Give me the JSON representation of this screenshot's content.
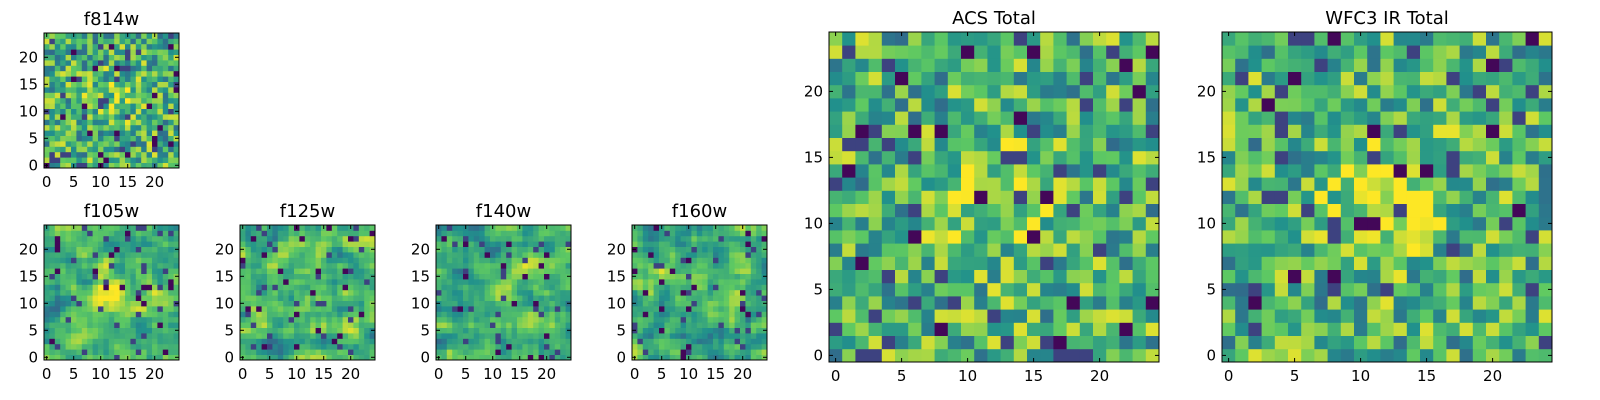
{
  "figure": {
    "colormap": [
      "#440154",
      "#3b528b",
      "#21918c",
      "#5ec962",
      "#fde725"
    ]
  },
  "chart_data": [
    {
      "type": "heatmap",
      "title": "f814w",
      "xlabel": "",
      "ylabel": "",
      "grid_shape": [
        25,
        25
      ],
      "xlim": [
        0,
        25
      ],
      "ylim": [
        0,
        25
      ],
      "xticks": [
        "0",
        "5",
        "10",
        "15",
        "20"
      ],
      "yticks": [
        "0",
        "5",
        "10",
        "15",
        "20"
      ],
      "seed": 814,
      "mode": "noise",
      "center_boost": 0.15,
      "grid": false,
      "legend": "none"
    },
    {
      "type": "heatmap",
      "title": "f105w",
      "xlabel": "",
      "ylabel": "",
      "grid_shape": [
        25,
        25
      ],
      "xlim": [
        0,
        25
      ],
      "ylim": [
        0,
        25
      ],
      "xticks": [
        "0",
        "5",
        "10",
        "15",
        "20"
      ],
      "yticks": [
        "0",
        "5",
        "10",
        "15",
        "20"
      ],
      "seed": 105,
      "mode": "smooth",
      "center_boost": 0.35,
      "grid": false,
      "legend": "none"
    },
    {
      "type": "heatmap",
      "title": "f125w",
      "xlabel": "",
      "ylabel": "",
      "grid_shape": [
        25,
        25
      ],
      "xlim": [
        0,
        25
      ],
      "ylim": [
        0,
        25
      ],
      "xticks": [
        "0",
        "5",
        "10",
        "15",
        "20"
      ],
      "yticks": [
        "0",
        "5",
        "10",
        "15",
        "20"
      ],
      "seed": 125,
      "mode": "smooth",
      "center_boost": 0.15,
      "grid": false,
      "legend": "none"
    },
    {
      "type": "heatmap",
      "title": "f140w",
      "xlabel": "",
      "ylabel": "",
      "grid_shape": [
        25,
        25
      ],
      "xlim": [
        0,
        25
      ],
      "ylim": [
        0,
        25
      ],
      "xticks": [
        "0",
        "5",
        "10",
        "15",
        "20"
      ],
      "yticks": [
        "0",
        "5",
        "10",
        "15",
        "20"
      ],
      "seed": 140,
      "mode": "smooth",
      "center_boost": 0.15,
      "grid": false,
      "legend": "none"
    },
    {
      "type": "heatmap",
      "title": "f160w",
      "xlabel": "",
      "ylabel": "",
      "grid_shape": [
        25,
        25
      ],
      "xlim": [
        0,
        25
      ],
      "ylim": [
        0,
        25
      ],
      "xticks": [
        "0",
        "5",
        "10",
        "15",
        "20"
      ],
      "yticks": [
        "0",
        "5",
        "10",
        "15",
        "20"
      ],
      "seed": 160,
      "mode": "smooth",
      "center_boost": 0.2,
      "grid": false,
      "legend": "none"
    },
    {
      "type": "heatmap",
      "title": "ACS Total",
      "xlabel": "",
      "ylabel": "",
      "grid_shape": [
        25,
        25
      ],
      "xlim": [
        0,
        25
      ],
      "ylim": [
        0,
        25
      ],
      "xticks": [
        "0",
        "5",
        "10",
        "15",
        "20"
      ],
      "yticks": [
        "0",
        "5",
        "10",
        "15",
        "20"
      ],
      "seed": 2001,
      "mode": "blocky",
      "center_boost": 0.25,
      "grid": false,
      "legend": "none"
    },
    {
      "type": "heatmap",
      "title": "WFC3 IR Total",
      "xlabel": "",
      "ylabel": "",
      "grid_shape": [
        25,
        25
      ],
      "xlim": [
        0,
        25
      ],
      "ylim": [
        0,
        25
      ],
      "xticks": [
        "0",
        "5",
        "10",
        "15",
        "20"
      ],
      "yticks": [
        "0",
        "5",
        "10",
        "15",
        "20"
      ],
      "seed": 3003,
      "mode": "blocky",
      "center_boost": 0.35,
      "grid": false,
      "legend": "none"
    }
  ]
}
